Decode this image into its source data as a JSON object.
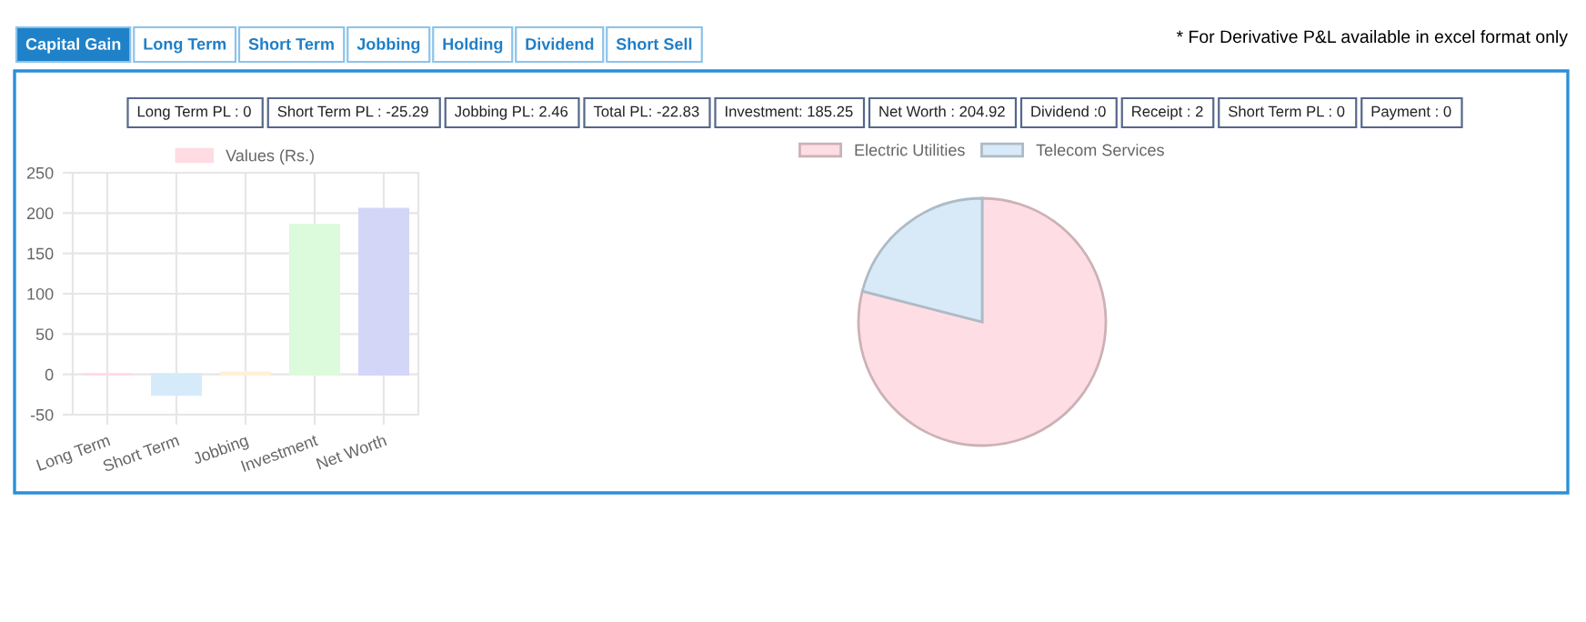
{
  "chart_data": [
    {
      "type": "other",
      "annotations": [
        "Capital Gain",
        "Long Term",
        "Short Term",
        "Jobbing",
        "Holding",
        "Dividend",
        "Short Sell",
        "* For Derivative P&L available in excel format only",
        "Long Term PL : 0",
        "Short Term PL : -25.29",
        "Jobbing PL: 2.46",
        "Total PL: -22.83",
        "Investment: 185.25",
        "Net Worth : 204.92",
        "Dividend :0",
        "Receipt : 2",
        "Short Term PL : 0",
        "Payment : 0"
      ]
    },
    {
      "type": "bar",
      "categories": [
        "Long Term",
        "Short Term",
        "Jobbing",
        "Investment",
        "Net Worth"
      ],
      "series": [
        {
          "name": "Values (Rs.)",
          "color": "#ffdbe3",
          "values": [
            0,
            -25,
            2,
            185,
            205
          ],
          "colors": [
            "#ffdbe3",
            "#d6ebf9",
            "#fff0d9",
            "#dcfadc",
            "#d3d6f7"
          ]
        }
      ],
      "ylim": [
        -50,
        250
      ],
      "yticks": [
        -50,
        0,
        50,
        100,
        150,
        200,
        250
      ],
      "grid": true,
      "legend": "top"
    },
    {
      "type": "pie",
      "categories": [
        "Electric Utilities",
        "Telecom Services"
      ],
      "values": [
        79,
        21
      ],
      "colors": [
        "#ffdde4",
        "#d8eaf8"
      ],
      "legend": "top"
    }
  ]
}
